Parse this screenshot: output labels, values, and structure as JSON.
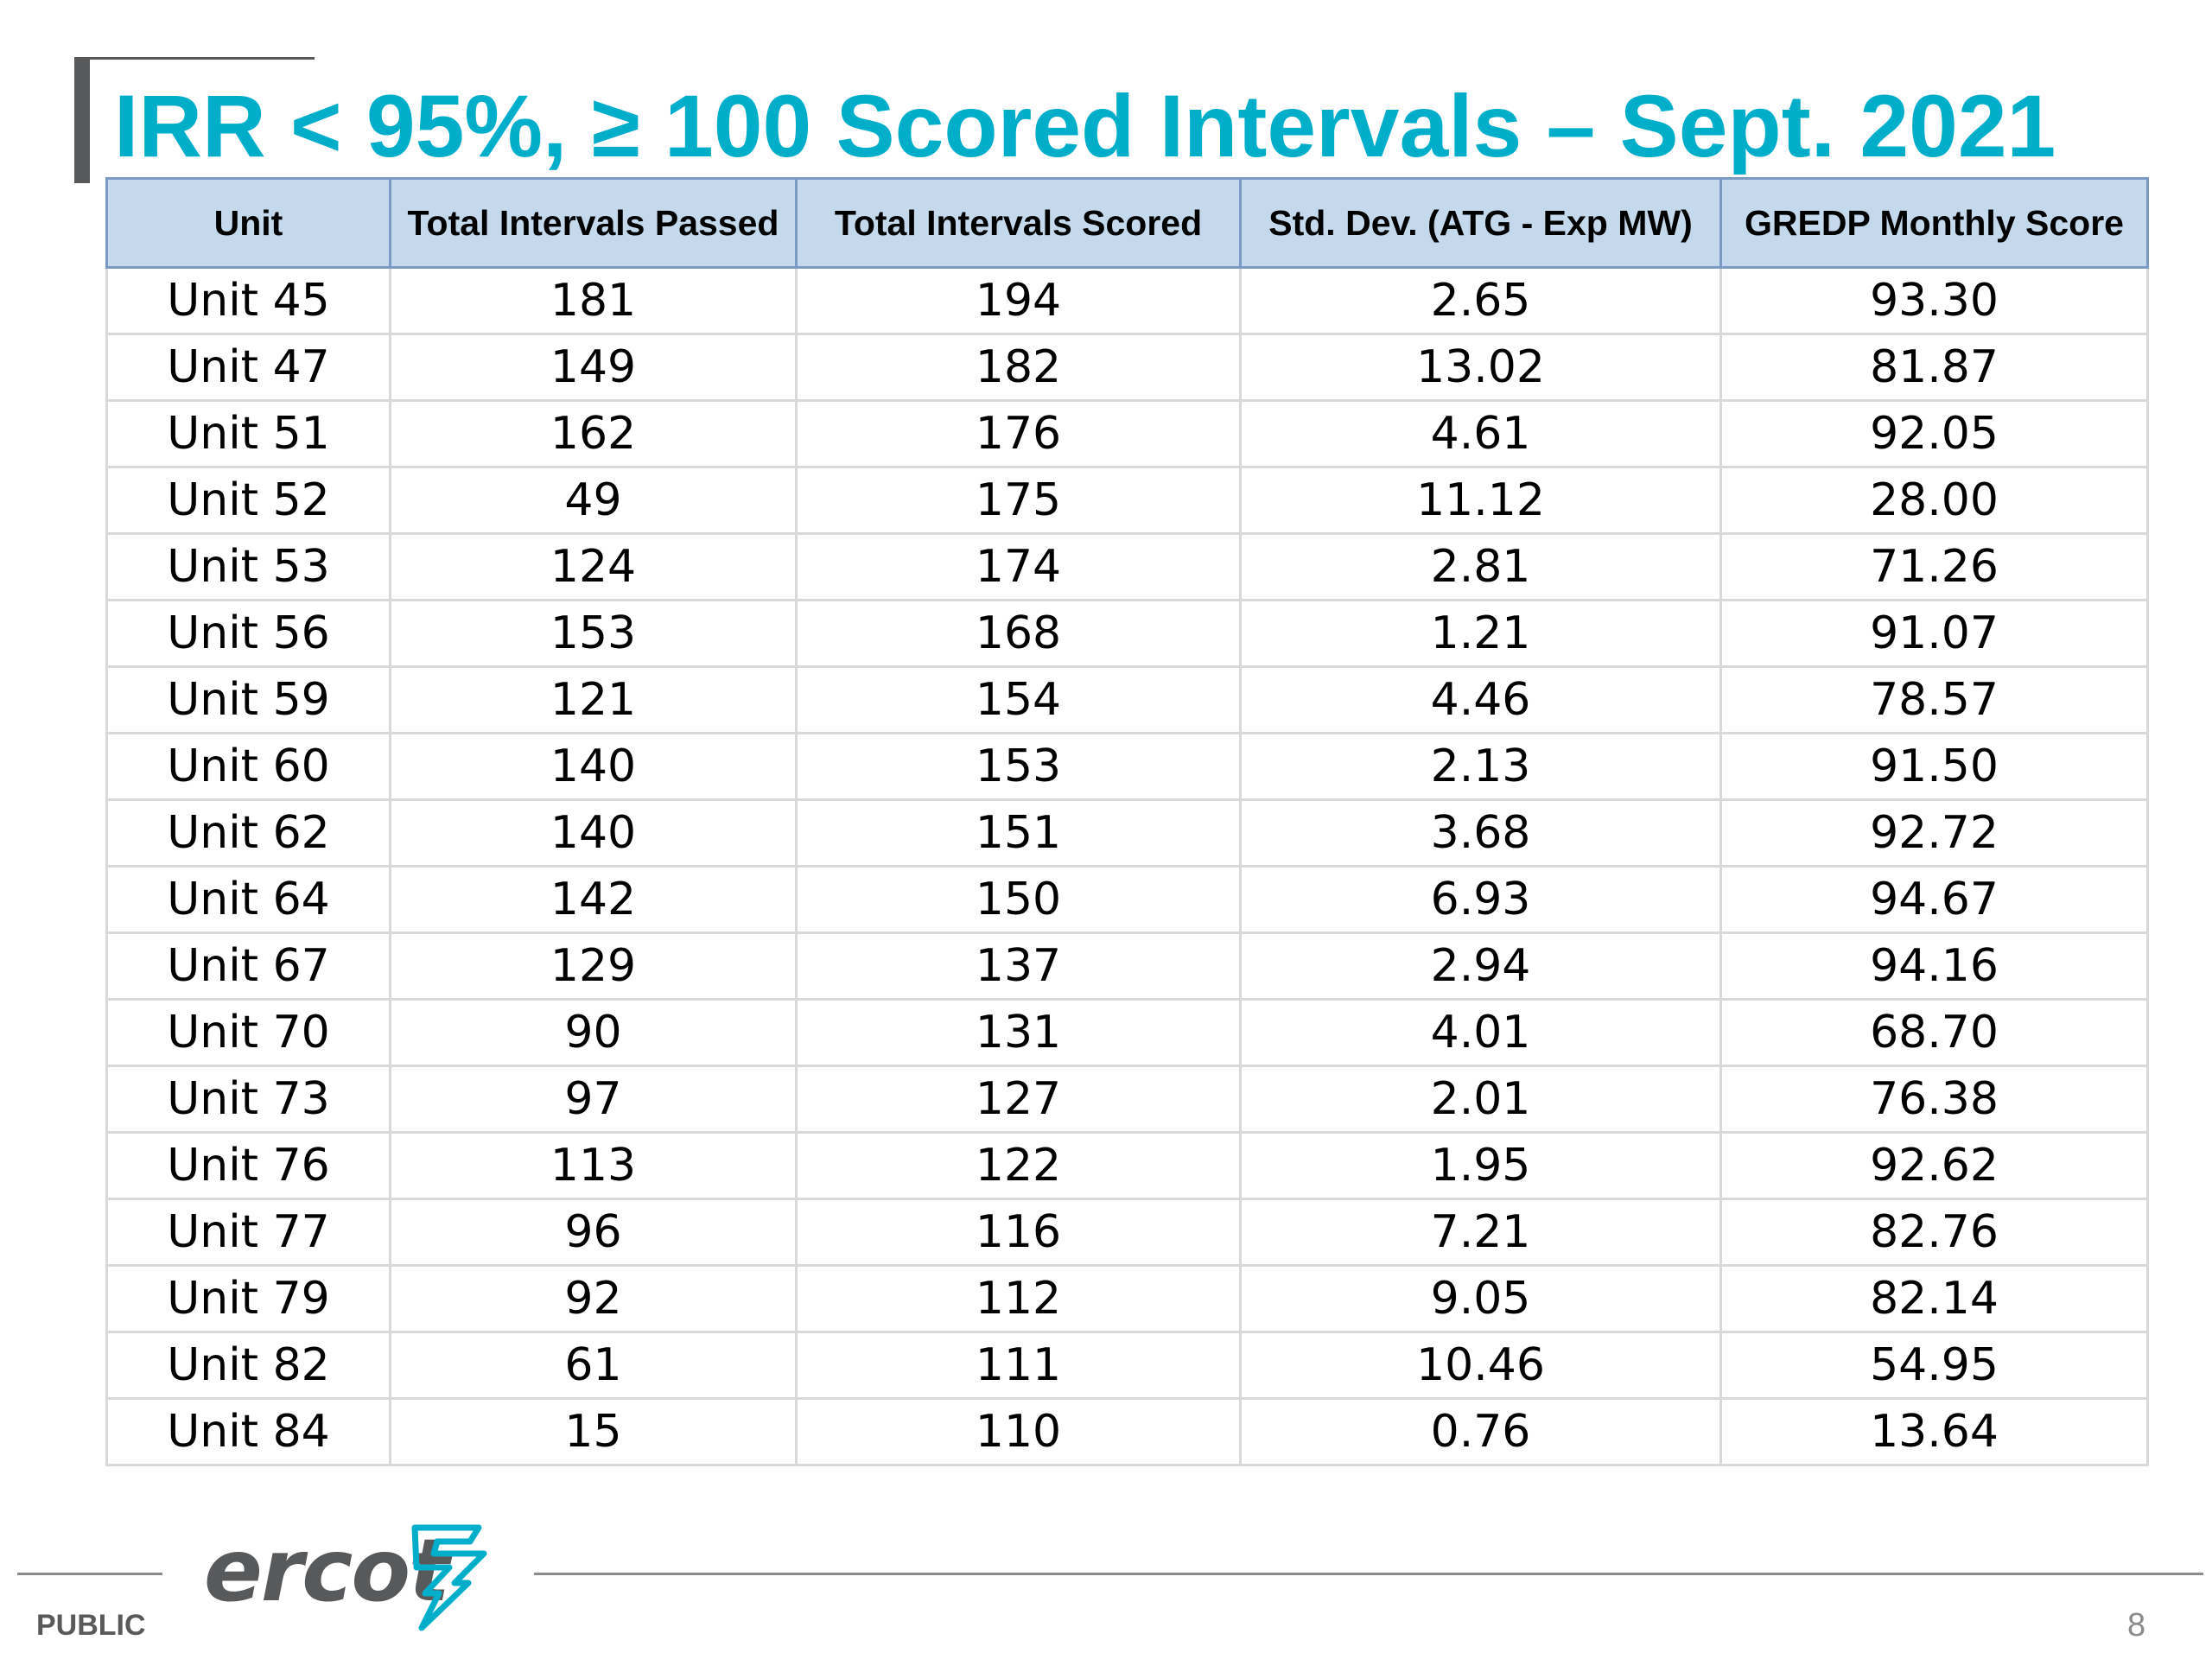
{
  "slide": {
    "title": "IRR < 95%, ≥ 100 Scored Intervals – Sept. 2021"
  },
  "table": {
    "headers": [
      "Unit",
      "Total Intervals Passed",
      "Total Intervals Scored",
      "Std. Dev. (ATG - Exp MW)",
      "GREDP Monthly Score"
    ],
    "rows": [
      [
        "Unit 45",
        "181",
        "194",
        "2.65",
        "93.30"
      ],
      [
        "Unit 47",
        "149",
        "182",
        "13.02",
        "81.87"
      ],
      [
        "Unit 51",
        "162",
        "176",
        "4.61",
        "92.05"
      ],
      [
        "Unit 52",
        "49",
        "175",
        "11.12",
        "28.00"
      ],
      [
        "Unit 53",
        "124",
        "174",
        "2.81",
        "71.26"
      ],
      [
        "Unit 56",
        "153",
        "168",
        "1.21",
        "91.07"
      ],
      [
        "Unit 59",
        "121",
        "154",
        "4.46",
        "78.57"
      ],
      [
        "Unit 60",
        "140",
        "153",
        "2.13",
        "91.50"
      ],
      [
        "Unit 62",
        "140",
        "151",
        "3.68",
        "92.72"
      ],
      [
        "Unit 64",
        "142",
        "150",
        "6.93",
        "94.67"
      ],
      [
        "Unit 67",
        "129",
        "137",
        "2.94",
        "94.16"
      ],
      [
        "Unit 70",
        "90",
        "131",
        "4.01",
        "68.70"
      ],
      [
        "Unit 73",
        "97",
        "127",
        "2.01",
        "76.38"
      ],
      [
        "Unit 76",
        "113",
        "122",
        "1.95",
        "92.62"
      ],
      [
        "Unit 77",
        "96",
        "116",
        "7.21",
        "82.76"
      ],
      [
        "Unit 79",
        "92",
        "112",
        "9.05",
        "82.14"
      ],
      [
        "Unit 82",
        "61",
        "111",
        "10.46",
        "54.95"
      ],
      [
        "Unit 84",
        "15",
        "110",
        "0.76",
        "13.64"
      ]
    ]
  },
  "footer": {
    "logo_text": "ercot",
    "logo_icon": "ercot-lightning-icon",
    "classification": "PUBLIC",
    "page_number": "8"
  },
  "colors": {
    "title": "#00aeca",
    "header_fill": "#c5d9ed",
    "header_border": "#7a9ac4",
    "grid": "#d9d9d9",
    "logo_gray": "#58595b",
    "logo_blue": "#00aeca"
  }
}
